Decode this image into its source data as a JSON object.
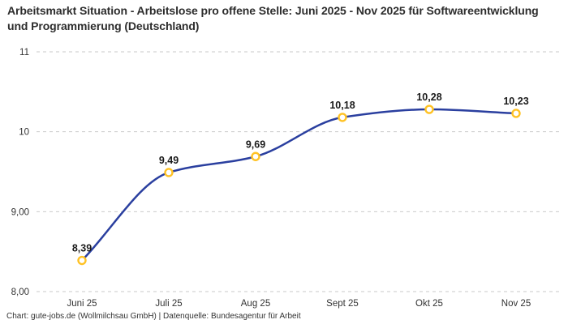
{
  "title": "Arbeitsmarkt Situation - Arbeitslose pro offene Stelle: Juni 2025 - Nov 2025 für Softwareentwicklung und Programmierung (Deutschland)",
  "footer": "Chart: gute-jobs.de (Wollmilchsau GmbH) | Datenquelle: Bundesagentur für Arbeit",
  "chart_data": {
    "type": "line",
    "title": "Arbeitsmarkt Situation - Arbeitslose pro offene Stelle: Juni 2025 - Nov 2025 für Softwareentwicklung und Programmierung (Deutschland)",
    "categories": [
      "Juni 25",
      "Juli 25",
      "Aug 25",
      "Sept 25",
      "Okt 25",
      "Nov 25"
    ],
    "values": [
      8.39,
      9.49,
      9.69,
      10.18,
      10.28,
      10.23
    ],
    "value_labels": [
      "8,39",
      "9,49",
      "9,69",
      "10,18",
      "10,28",
      "10,23"
    ],
    "y_ticks": [
      {
        "value": 8,
        "label": "8,00"
      },
      {
        "value": 9,
        "label": "9,00"
      },
      {
        "value": 10,
        "label": "10"
      },
      {
        "value": 11,
        "label": "11"
      }
    ],
    "ylim": [
      8,
      11
    ],
    "xlabel": "",
    "ylabel": "",
    "legend": "none",
    "grid": "horizontal-dashed",
    "colors": {
      "line": "#2a3f9f",
      "marker_stroke": "#ffc224",
      "marker_fill": "#ffffff",
      "grid": "#c9c9c9",
      "tick_text": "#333333",
      "label_text": "#1a1a1a"
    }
  }
}
